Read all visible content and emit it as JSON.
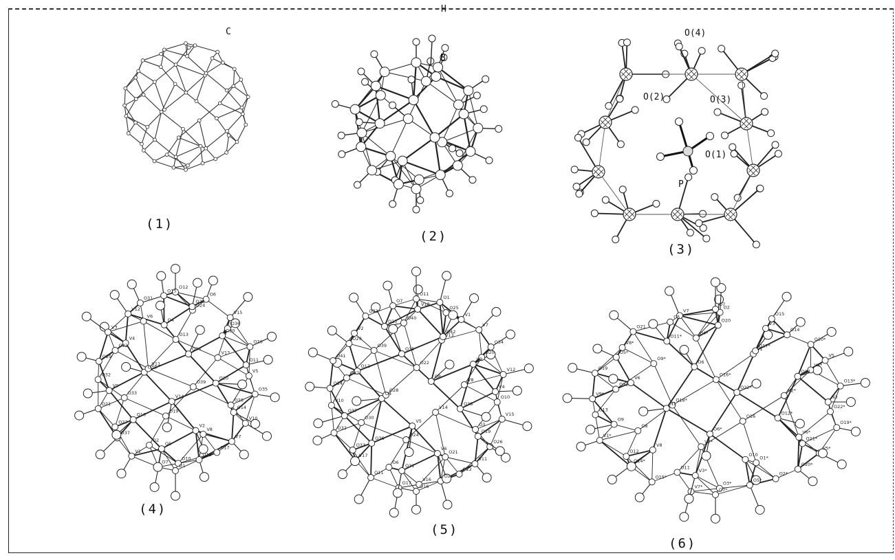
{
  "figure": {
    "panels": [
      {
        "caption": "(1)",
        "atom_labels": [
          "C"
        ]
      },
      {
        "caption": "(2)",
        "atom_labels": [
          "H",
          "B"
        ]
      },
      {
        "caption": "(3)",
        "atom_labels": [
          "O(4)",
          "O(2)",
          "O(3)",
          "O(1)",
          "P"
        ]
      },
      {
        "caption": "(4)",
        "atom_labels": [
          "O1",
          "O7",
          "O10",
          "O18",
          "V1",
          "O17",
          "O5",
          "O2",
          "V7",
          "O37",
          "V8",
          "V2",
          "O27",
          "V10",
          "O16",
          "O19",
          "O14",
          "O21",
          "O28",
          "V14",
          "O33",
          "O35",
          "V9",
          "O39",
          "O20",
          "O32",
          "V5",
          "O38",
          "V11",
          "O11",
          "O29",
          "V13",
          "O34",
          "O22",
          "O26",
          "V4",
          "O13",
          "O30",
          "V3",
          "O36",
          "O4",
          "V6",
          "V15",
          "V12",
          "O24",
          "O23",
          "O31",
          "O6",
          "O15",
          "O12"
        ]
      },
      {
        "caption": "(5)",
        "atom_labels": [
          "O16",
          "O17",
          "V16",
          "O2",
          "O11",
          "O22",
          "O31",
          "O6",
          "V11",
          "V17",
          "O21",
          "V6",
          "O33",
          "O26",
          "O36",
          "O24",
          "O19",
          "O32",
          "O3",
          "V5",
          "O30",
          "V15",
          "O37",
          "V14",
          "O38",
          "V10",
          "O10",
          "O4",
          "O28",
          "V4",
          "O14",
          "V8",
          "O8",
          "O27",
          "V12",
          "O12",
          "O22",
          "V9",
          "O41",
          "O20",
          "O35",
          "O39",
          "O34",
          "O29",
          "V13",
          "O42",
          "V2",
          "V7",
          "O13",
          "O40",
          "V1",
          "O33",
          "O25",
          "V18",
          "O7",
          "O1",
          "O11"
        ]
      },
      {
        "caption": "(6)",
        "atom_labels": [
          "O7*",
          "V7*",
          "O3*",
          "O5*",
          "O15*",
          "O2*",
          "V3*",
          "O11",
          "O20*",
          "O14*",
          "O1*",
          "O10",
          "O12",
          "V5*",
          "V8",
          "V2*",
          "O21*",
          "V1*",
          "V6*",
          "O6*",
          "O8",
          "O19*",
          "O9",
          "O16",
          "O12*",
          "O13",
          "O22*",
          "N1",
          "O18*",
          "N2",
          "V9*",
          "N2*",
          "O22*",
          "O12",
          "O13*",
          "V6",
          "O16*",
          "O18",
          "O19",
          "V4*",
          "O6",
          "O9*",
          "V5",
          "O5*",
          "V1",
          "O17*",
          "V8*",
          "O10*",
          "O11*",
          "O4*",
          "O14",
          "O21",
          "V3",
          "O20",
          "O5",
          "O15",
          "V7",
          "O2",
          "O7"
        ]
      }
    ]
  }
}
